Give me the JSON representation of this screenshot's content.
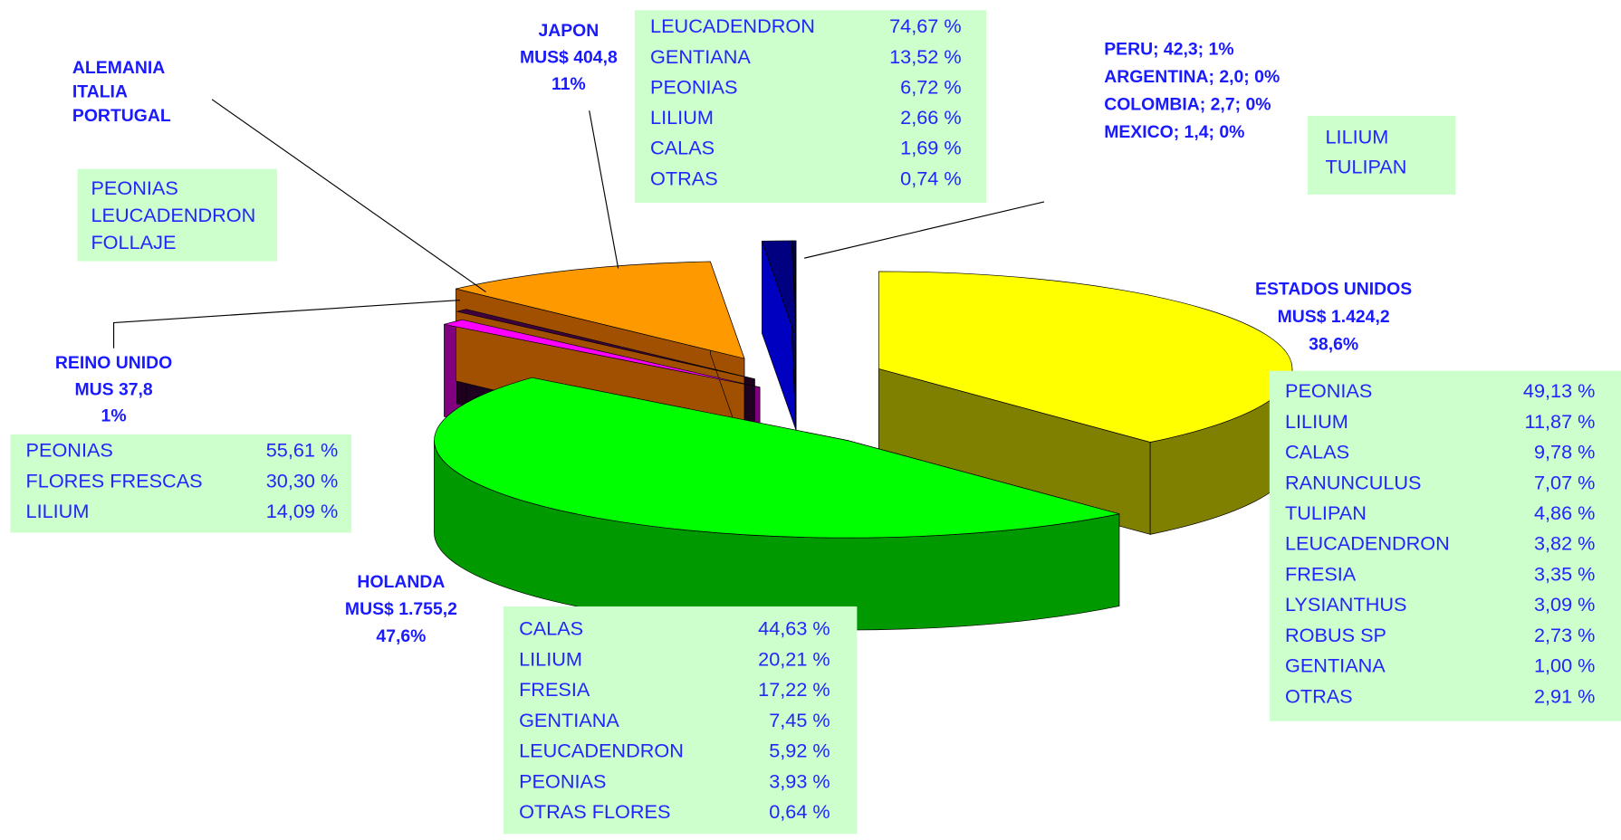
{
  "chart_data": {
    "type": "pie3d",
    "slices": [
      {
        "label_lines": [
          "ESTADOS UNIDOS",
          "MUS$ 1.424,2",
          "38,6%"
        ],
        "value": 1424.2,
        "color": "#ffff00",
        "side_color": "#808000",
        "breakdown": [
          [
            "PEONIAS",
            "49,13 %"
          ],
          [
            "LILIUM",
            "11,87 %"
          ],
          [
            "CALAS",
            "9,78 %"
          ],
          [
            "RANUNCULUS",
            "7,07 %"
          ],
          [
            "TULIPAN",
            "4,86 %"
          ],
          [
            "LEUCADENDRON",
            "3,82 %"
          ],
          [
            "FRESIA",
            "3,35 %"
          ],
          [
            "LYSIANTHUS",
            "3,09 %"
          ],
          [
            "ROBUS SP",
            "2,73 %"
          ],
          [
            "GENTIANA",
            "1,00 %"
          ],
          [
            "OTRAS",
            "2,91 %"
          ]
        ]
      },
      {
        "label_lines": [
          "HOLANDA",
          "MUS$ 1.755,2",
          "47,6%"
        ],
        "value": 1755.2,
        "color": "#00ff00",
        "side_color": "#009900",
        "breakdown": [
          [
            "CALAS",
            "44,63 %"
          ],
          [
            "LILIUM",
            "20,21 %"
          ],
          [
            "FRESIA",
            "17,22 %"
          ],
          [
            "GENTIANA",
            "7,45 %"
          ],
          [
            "LEUCADENDRON",
            "5,92 %"
          ],
          [
            "PEONIAS",
            "3,93 %"
          ],
          [
            "OTRAS FLORES",
            "0,64 %"
          ]
        ]
      },
      {
        "label_lines": [
          "REINO UNIDO",
          "MUS 37,8",
          "1%"
        ],
        "value": 37.8,
        "color": "#ff00ff",
        "side_color": "#800080",
        "breakdown": [
          [
            "PEONIAS",
            "55,61 %"
          ],
          [
            "FLORES FRESCAS",
            "30,30 %"
          ],
          [
            "LILIUM",
            "14,09 %"
          ]
        ]
      },
      {
        "label_lines": [
          "ALEMANIA",
          "ITALIA",
          "PORTUGAL"
        ],
        "value": 19,
        "color": "#400040",
        "side_color": "#200020",
        "breakdown": [
          [
            "PEONIAS"
          ],
          [
            "LEUCADENDRON"
          ],
          [
            "FOLLAJE"
          ]
        ]
      },
      {
        "label_lines": [
          "JAPON",
          "MUS$ 404,8",
          "11%"
        ],
        "value": 404.8,
        "color": "#ff9900",
        "side_color": "#a05000",
        "breakdown": [
          [
            "LEUCADENDRON",
            "74,67 %"
          ],
          [
            "GENTIANA",
            "13,52 %"
          ],
          [
            "PEONIAS",
            "6,72 %"
          ],
          [
            "LILIUM",
            "2,66 %"
          ],
          [
            "CALAS",
            "1,69 %"
          ],
          [
            "OTRAS",
            "0,74 %"
          ]
        ]
      },
      {
        "label_lines": [
          "PERU; 42,3; 1%",
          "ARGENTINA; 2,0; 0%",
          "COLOMBIA; 2,7; 0%",
          "MEXICO; 1,4; 0%"
        ],
        "values": [
          42.3,
          2.0,
          2.7,
          1.4
        ],
        "color": "#000080",
        "side_color": "#0000c0",
        "breakdown": [
          [
            "LILIUM"
          ],
          [
            "TULIPAN"
          ]
        ]
      }
    ]
  }
}
